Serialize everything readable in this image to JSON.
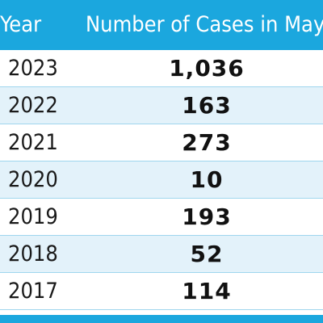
{
  "table": {
    "headers": {
      "year": "Year",
      "cases": "Number of Cases in May"
    },
    "rows": [
      {
        "year": "2023",
        "cases": "1,036"
      },
      {
        "year": "2022",
        "cases": "163"
      },
      {
        "year": "2021",
        "cases": "273"
      },
      {
        "year": "2020",
        "cases": "10"
      },
      {
        "year": "2019",
        "cases": "193"
      },
      {
        "year": "2018",
        "cases": "52"
      },
      {
        "year": "2017",
        "cases": "114"
      }
    ]
  },
  "colors": {
    "header_bg": "#1ba7de",
    "stripe_bg": "#e3f2fa",
    "header_text": "#ffffff"
  }
}
